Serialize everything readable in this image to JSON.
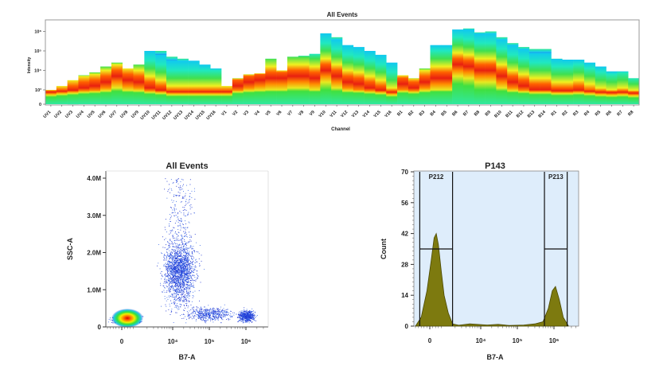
{
  "chart_data": [
    {
      "type": "heatmap",
      "title": "All Events",
      "xlabel": "Channel",
      "ylabel": "Intensity",
      "y_scale": "log",
      "y_ticks": [
        "0",
        "10³",
        "10⁴",
        "10⁵",
        "10⁶"
      ],
      "categories": [
        "UV1",
        "UV2",
        "UV3",
        "UV4",
        "UV5",
        "UV6",
        "UV7",
        "UV8",
        "UV9",
        "UV10",
        "UV11",
        "UV12",
        "UV13",
        "UV14",
        "UV15",
        "UV16",
        "V1",
        "V2",
        "V3",
        "V4",
        "V5",
        "V6",
        "V7",
        "V8",
        "V9",
        "V10",
        "V11",
        "V12",
        "V13",
        "V14",
        "V15",
        "V16",
        "B1",
        "B2",
        "B3",
        "B4",
        "B5",
        "B6",
        "B7",
        "B8",
        "B9",
        "B10",
        "B11",
        "B12",
        "B13",
        "B14",
        "R1",
        "R2",
        "R3",
        "R4",
        "R5",
        "R6",
        "R7",
        "R8"
      ],
      "max_intensity_log10": [
        3.0,
        3.2,
        3.5,
        3.75,
        3.9,
        4.2,
        4.4,
        4.1,
        4.3,
        5.0,
        5.0,
        4.7,
        4.6,
        4.5,
        4.3,
        4.1,
        3.2,
        3.6,
        3.8,
        3.85,
        4.6,
        4.0,
        4.7,
        4.75,
        4.85,
        5.9,
        5.7,
        5.3,
        5.2,
        5.0,
        4.8,
        4.4,
        3.75,
        3.6,
        4.1,
        5.3,
        5.3,
        6.1,
        6.15,
        5.95,
        6.0,
        5.7,
        5.4,
        5.2,
        5.1,
        5.1,
        4.6,
        4.55,
        4.55,
        4.4,
        4.2,
        3.95,
        3.95,
        3.6
      ],
      "peak_intensity_log10": [
        2.5,
        2.7,
        2.9,
        3.1,
        3.2,
        3.4,
        3.7,
        3.5,
        3.4,
        3.1,
        2.9,
        2.6,
        2.6,
        2.6,
        2.6,
        2.6,
        2.6,
        3.2,
        3.4,
        3.5,
        3.6,
        3.6,
        3.7,
        3.7,
        3.6,
        4.0,
        3.7,
        3.4,
        3.3,
        3.1,
        2.9,
        2.5,
        3.3,
        3.1,
        3.4,
        3.6,
        3.6,
        4.3,
        4.2,
        4.0,
        4.0,
        3.7,
        3.4,
        3.2,
        3.0,
        3.0,
        2.8,
        2.8,
        2.9,
        2.7,
        2.5,
        2.4,
        2.5,
        2.3
      ]
    },
    {
      "type": "scatter",
      "title": "All Events",
      "xlabel": "B7-A",
      "ylabel": "SSC-A",
      "x_scale": "biexponential",
      "x_ticks": [
        "0",
        "10⁴",
        "10⁵",
        "10⁶"
      ],
      "y_ticks": [
        "0",
        "1.0M",
        "2.0M",
        "3.0M",
        "4.0M"
      ],
      "ylim": [
        0,
        4200000
      ],
      "populations": [
        {
          "center_b7a": 300,
          "center_ssca": 200000,
          "count": 900
        },
        {
          "center_b7a": 15000,
          "center_ssca": 1500000,
          "count": 2200
        },
        {
          "center_b7a": 1000000,
          "center_ssca": 300000,
          "count": 600
        },
        {
          "center_b7a": 100000,
          "center_ssca": 350000,
          "count": 500
        }
      ]
    },
    {
      "type": "area",
      "title": "P143",
      "xlabel": "B7-A",
      "ylabel": "Count",
      "x_scale": "biexponential",
      "x_ticks": [
        "0",
        "10⁴",
        "10⁵",
        "10⁶"
      ],
      "y_ticks": [
        "0",
        "14",
        "28",
        "42",
        "56",
        "70"
      ],
      "ylim": [
        0,
        70
      ],
      "x": [
        -1000,
        -600,
        -200,
        100,
        300,
        450,
        600,
        800,
        1000,
        1300,
        1700,
        2500,
        5000,
        8000,
        15000,
        30000,
        60000,
        150000,
        300000,
        500000,
        700000,
        900000,
        1100000,
        1400000,
        1800000,
        2500000
      ],
      "y": [
        0,
        4,
        16,
        30,
        40,
        42,
        37,
        25,
        14,
        6,
        1,
        0.4,
        1,
        0.8,
        0.5,
        0.8,
        0.3,
        0.5,
        1,
        2,
        8,
        16,
        18,
        12,
        4,
        0
      ],
      "gates": [
        {
          "label": "P212",
          "x_range": [
            -700,
            1700
          ],
          "count_level": 35
        },
        {
          "label": "P213",
          "x_range": [
            550000,
            2300000
          ],
          "count_level": 35
        }
      ]
    }
  ]
}
